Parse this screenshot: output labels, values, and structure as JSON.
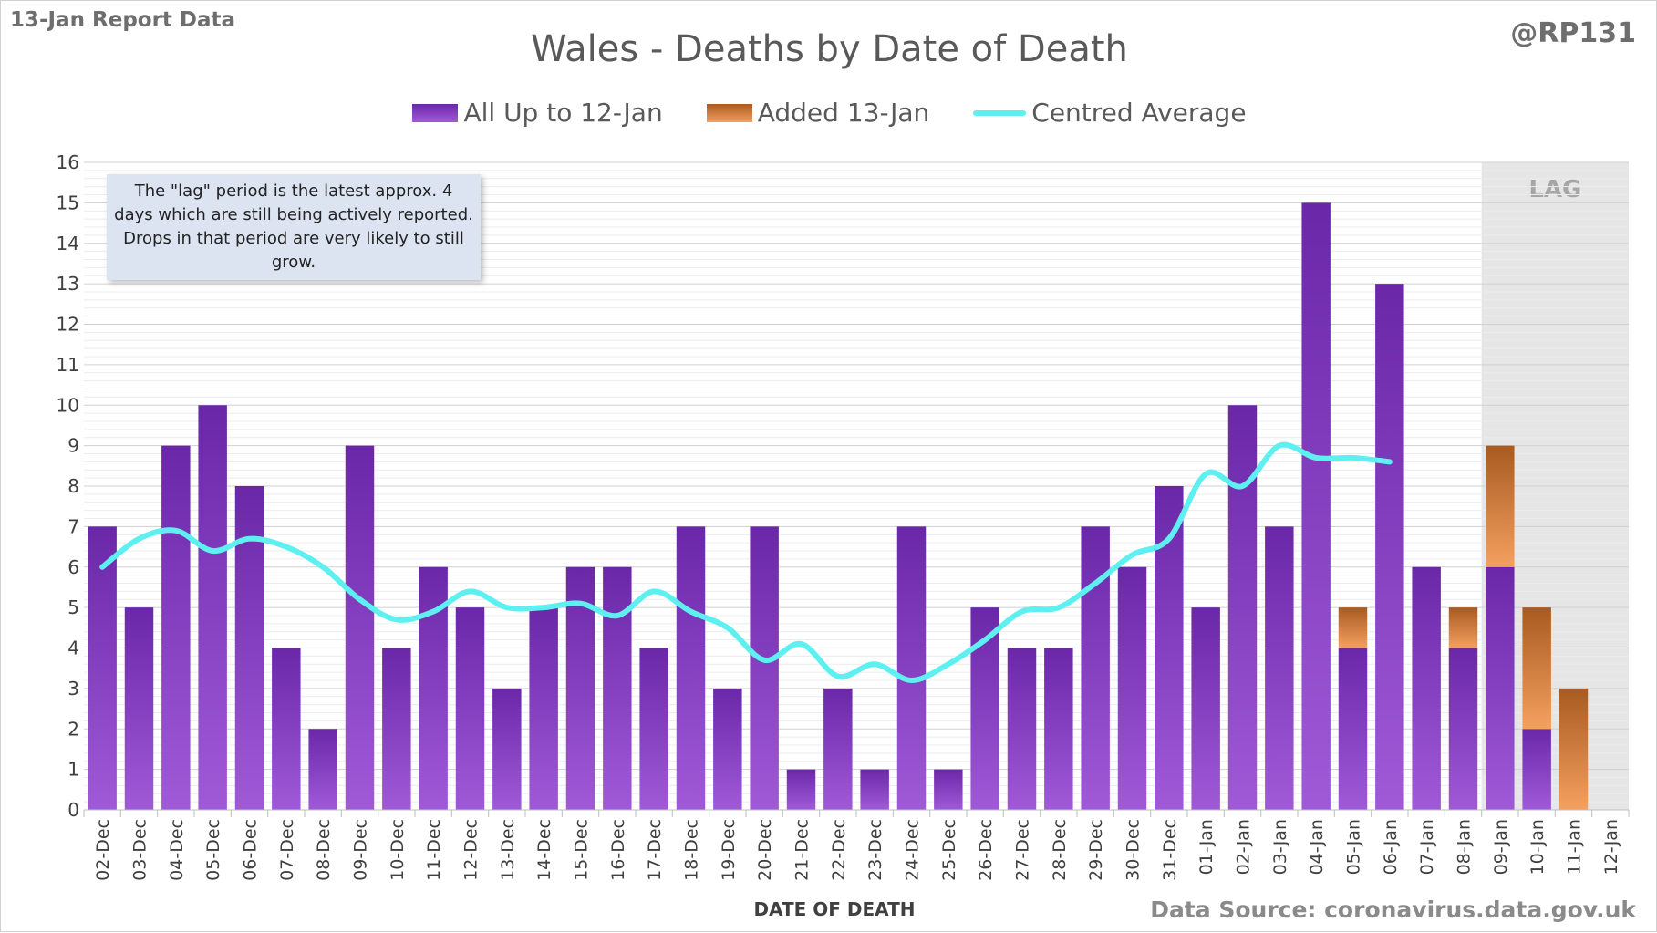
{
  "header": {
    "report_label": "13-Jan Report Data",
    "handle": "@RP131",
    "source": "Data Source: coronavirus.data.gov.uk"
  },
  "note": "The \"lag\" period is the latest approx. 4 days which are still being actively reported.  Drops in that period are very likely to still grow.",
  "colors": {
    "primary_series": "#7a34bd",
    "added_series": "#e07a30",
    "average_line": "#5ef0f0",
    "lag_band": "#e6e6e6"
  },
  "chart_data": {
    "type": "bar",
    "title": "Wales - Deaths by Date of Death",
    "xlabel": "DATE OF DEATH",
    "ylabel": "",
    "ylim": [
      0,
      16
    ],
    "yticks": [
      0,
      1,
      2,
      3,
      4,
      5,
      6,
      7,
      8,
      9,
      10,
      11,
      12,
      13,
      14,
      15,
      16
    ],
    "grid": true,
    "legend_position": "top",
    "stacked": true,
    "categories": [
      "02-Dec",
      "03-Dec",
      "04-Dec",
      "05-Dec",
      "06-Dec",
      "07-Dec",
      "08-Dec",
      "09-Dec",
      "10-Dec",
      "11-Dec",
      "12-Dec",
      "13-Dec",
      "14-Dec",
      "15-Dec",
      "16-Dec",
      "17-Dec",
      "18-Dec",
      "19-Dec",
      "20-Dec",
      "21-Dec",
      "22-Dec",
      "23-Dec",
      "24-Dec",
      "25-Dec",
      "26-Dec",
      "27-Dec",
      "28-Dec",
      "29-Dec",
      "30-Dec",
      "31-Dec",
      "01-Jan",
      "02-Jan",
      "03-Jan",
      "04-Jan",
      "05-Jan",
      "06-Jan",
      "07-Jan",
      "08-Jan",
      "09-Jan",
      "10-Jan",
      "11-Jan",
      "12-Jan"
    ],
    "series": [
      {
        "name": "All Up to 12-Jan",
        "kind": "bar",
        "values": [
          7,
          5,
          9,
          10,
          8,
          4,
          2,
          9,
          4,
          6,
          5,
          3,
          5,
          6,
          6,
          4,
          7,
          3,
          7,
          1,
          3,
          1,
          7,
          1,
          5,
          4,
          4,
          7,
          6,
          8,
          5,
          10,
          7,
          15,
          4,
          13,
          6,
          4,
          6,
          2,
          0,
          0
        ]
      },
      {
        "name": "Added 13-Jan",
        "kind": "bar",
        "values": [
          0,
          0,
          0,
          0,
          0,
          0,
          0,
          0,
          0,
          0,
          0,
          0,
          0,
          0,
          0,
          0,
          0,
          0,
          0,
          0,
          0,
          0,
          0,
          0,
          0,
          0,
          0,
          0,
          0,
          0,
          0,
          0,
          0,
          0,
          1,
          0,
          0,
          1,
          3,
          3,
          3,
          0
        ]
      },
      {
        "name": "Centred Average",
        "kind": "line",
        "values": [
          6.0,
          6.7,
          6.9,
          6.4,
          6.7,
          6.5,
          6.0,
          5.2,
          4.7,
          4.9,
          5.4,
          5.0,
          5.0,
          5.1,
          4.8,
          5.4,
          4.9,
          4.5,
          3.7,
          4.1,
          3.3,
          3.6,
          3.2,
          3.6,
          4.2,
          4.9,
          5.0,
          5.6,
          6.3,
          6.7,
          8.3,
          8.0,
          9.0,
          8.7,
          8.7,
          8.6,
          null,
          null,
          null,
          null,
          null,
          null
        ]
      }
    ],
    "lag_label": "LAG",
    "lag_categories": [
      "09-Jan",
      "10-Jan",
      "11-Jan",
      "12-Jan"
    ]
  }
}
